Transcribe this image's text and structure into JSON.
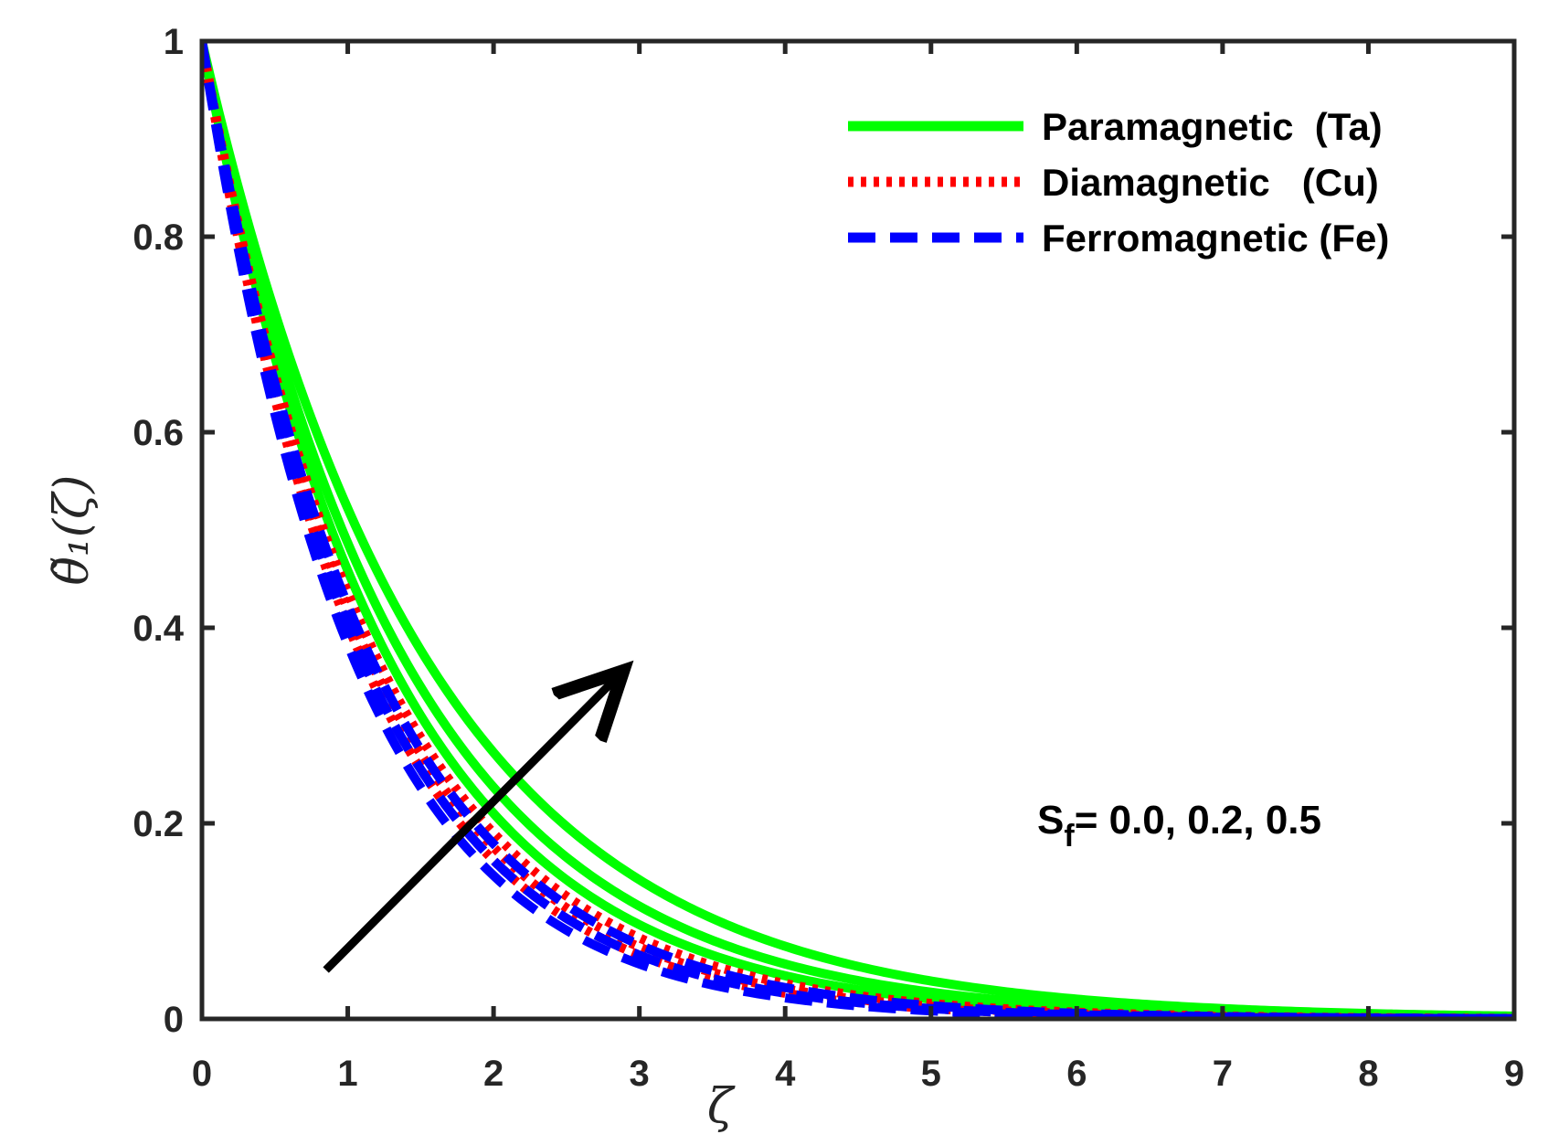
{
  "chart_data": {
    "type": "line",
    "xlabel": "ζ",
    "ylabel": "θ̃₁(ζ)",
    "xlim": [
      0,
      9
    ],
    "ylim": [
      0,
      1
    ],
    "xticks": [
      0,
      1,
      2,
      3,
      4,
      5,
      6,
      7,
      8,
      9
    ],
    "yticks": [
      0,
      0.2,
      0.4,
      0.6,
      0.8,
      1
    ],
    "xtick_labels": [
      "0",
      "1",
      "2",
      "3",
      "4",
      "5",
      "6",
      "7",
      "8",
      "9"
    ],
    "ytick_labels": [
      "0",
      "0.2",
      "0.4",
      "0.6",
      "0.8",
      "1"
    ],
    "grid": false,
    "legend_position": "top-right",
    "legend": [
      {
        "label": "Paramagnetic  (Ta)",
        "color": "#00ff00",
        "style": "solid"
      },
      {
        "label": "Diamagnetic   (Cu)",
        "color": "#ff0000",
        "style": "dotted"
      },
      {
        "label": "Ferromagnetic (Fe)",
        "color": "#0000ff",
        "style": "dashed"
      }
    ],
    "annotation": {
      "prefix": "S",
      "subscript": "f",
      "text": "= 0.0, 0.2, 0.5",
      "arrow_from": [
        0.85,
        0.05
      ],
      "arrow_to": [
        2.85,
        0.35
      ]
    },
    "series": [
      {
        "group": "Paramagnetic",
        "color": "#00ff00",
        "style": "solid",
        "Sf": 0.0,
        "decay": 0.65
      },
      {
        "group": "Paramagnetic",
        "color": "#00ff00",
        "style": "solid",
        "Sf": 0.2,
        "decay": 0.72
      },
      {
        "group": "Paramagnetic",
        "color": "#00ff00",
        "style": "solid",
        "Sf": 0.5,
        "decay": 0.78
      },
      {
        "group": "Diamagnetic",
        "color": "#ff0000",
        "style": "dotted",
        "Sf": 0.0,
        "decay": 0.83
      },
      {
        "group": "Diamagnetic",
        "color": "#ff0000",
        "style": "dotted",
        "Sf": 0.2,
        "decay": 0.87
      },
      {
        "group": "Diamagnetic",
        "color": "#ff0000",
        "style": "dotted",
        "Sf": 0.5,
        "decay": 0.91
      },
      {
        "group": "Ferromagnetic",
        "color": "#0000ff",
        "style": "dashed",
        "Sf": 0.0,
        "decay": 0.86
      },
      {
        "group": "Ferromagnetic",
        "color": "#0000ff",
        "style": "dashed",
        "Sf": 0.2,
        "decay": 0.91
      },
      {
        "group": "Ferromagnetic",
        "color": "#0000ff",
        "style": "dashed",
        "Sf": 0.5,
        "decay": 0.96
      }
    ]
  }
}
